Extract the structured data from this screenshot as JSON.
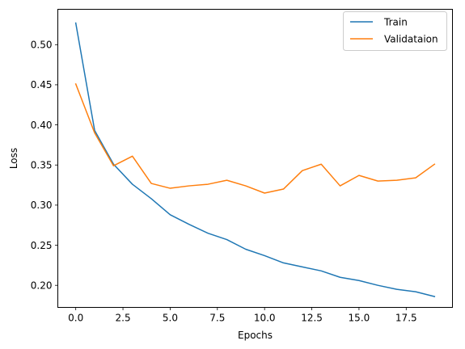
{
  "chart_data": {
    "type": "line",
    "xlabel": "Epochs",
    "ylabel": "Loss",
    "xlim": [
      -0.95,
      19.95
    ],
    "ylim": [
      0.1725,
      0.5441
    ],
    "xticks": [
      0,
      2.5,
      5,
      7.5,
      10,
      12.5,
      15,
      17.5
    ],
    "xtick_labels": [
      "0.0",
      "2.5",
      "5.0",
      "7.5",
      "10.0",
      "12.5",
      "15.0",
      "17.5"
    ],
    "yticks": [
      0.2,
      0.25,
      0.3,
      0.35,
      0.4,
      0.45,
      0.5
    ],
    "ytick_labels": [
      "0.20",
      "0.25",
      "0.30",
      "0.35",
      "0.40",
      "0.45",
      "0.50"
    ],
    "grid": false,
    "legend_position": "top-right",
    "x": [
      0,
      1,
      2,
      3,
      4,
      5,
      6,
      7,
      8,
      9,
      10,
      11,
      12,
      13,
      14,
      15,
      16,
      17,
      18,
      19
    ],
    "series": [
      {
        "name": "Train",
        "color": "#1f77b4",
        "values": [
          0.527,
          0.393,
          0.351,
          0.326,
          0.308,
          0.288,
          0.276,
          0.265,
          0.257,
          0.245,
          0.237,
          0.228,
          0.223,
          0.218,
          0.21,
          0.206,
          0.2,
          0.195,
          0.192,
          0.186
        ]
      },
      {
        "name": "Validataion",
        "color": "#ff7f0e",
        "values": [
          0.451,
          0.39,
          0.349,
          0.361,
          0.327,
          0.321,
          0.324,
          0.326,
          0.331,
          0.324,
          0.315,
          0.32,
          0.343,
          0.351,
          0.324,
          0.337,
          0.33,
          0.331,
          0.334,
          0.351
        ]
      }
    ]
  }
}
